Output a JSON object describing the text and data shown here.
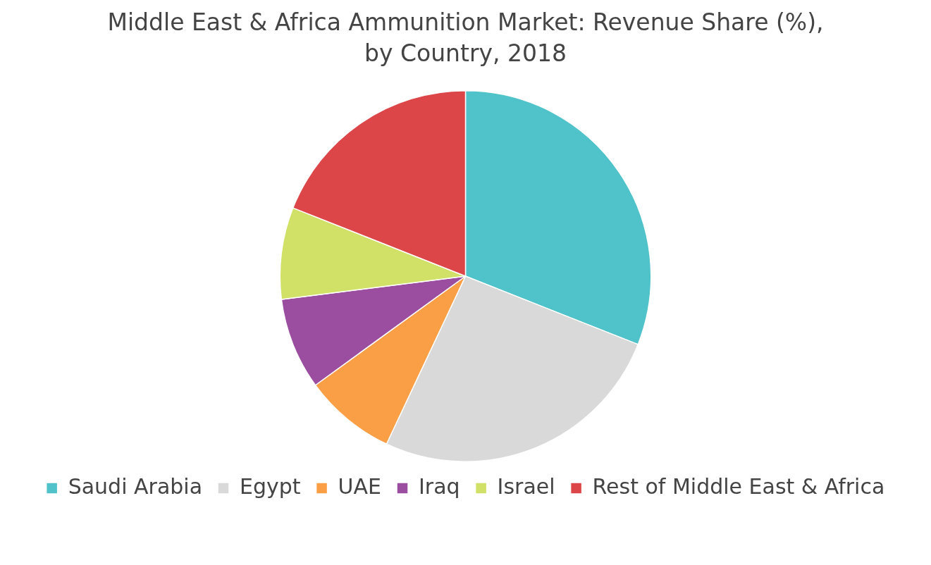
{
  "chart_data": {
    "type": "pie",
    "title": "Middle East & Africa Ammunition Market: Revenue Share (%), by Country, 2018",
    "categories": [
      "Saudi Arabia",
      "Egypt",
      "UAE",
      "Iraq",
      "Israel",
      "Rest of Middle East & Africa"
    ],
    "values": [
      31,
      26,
      8,
      8,
      8,
      19
    ],
    "colors": [
      "#4fc3c9",
      "#d9d9d9",
      "#fb9f47",
      "#9b4e9f",
      "#d1e067",
      "#dd4649"
    ],
    "legend": "bottom"
  }
}
